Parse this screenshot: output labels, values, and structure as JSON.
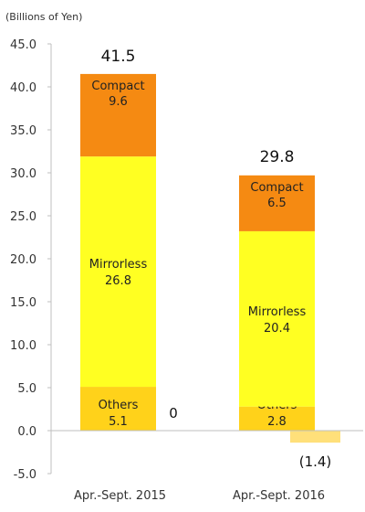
{
  "chart_data": {
    "type": "bar",
    "stacked": true,
    "unit_label": "(Billions of Yen)",
    "ylim": [
      -5,
      45
    ],
    "yticks": [
      "45.0",
      "40.0",
      "35.0",
      "30.0",
      "25.0",
      "20.0",
      "15.0",
      "10.0",
      "5.0",
      "0.0",
      "-5.0"
    ],
    "ytick_values": [
      45,
      40,
      35,
      30,
      25,
      20,
      15,
      10,
      5,
      0,
      -5
    ],
    "grid": false,
    "categories": [
      "Apr.-Sept. 2015",
      "Apr.-Sept. 2016"
    ],
    "colors": {
      "others": "#ffd21a",
      "mirrorless": "#ffff22",
      "compact": "#f58a12",
      "negative": "#ffe07a",
      "axis": "#bfbfbf"
    },
    "bars": [
      {
        "total": 41.5,
        "total_label": "41.5",
        "segments": [
          {
            "name": "Others",
            "value": 5.1,
            "value_label": "5.1",
            "color_key": "others"
          },
          {
            "name": "Mirrorless",
            "value": 26.8,
            "value_label": "26.8",
            "color_key": "mirrorless"
          },
          {
            "name": "Compact",
            "value": 9.6,
            "value_label": "9.6",
            "color_key": "compact"
          }
        ]
      },
      {
        "total": 29.8,
        "total_label": "29.8",
        "segments": [
          {
            "name": "Others",
            "value": 2.8,
            "value_label": "2.8",
            "color_key": "others"
          },
          {
            "name": "Mirrorless",
            "value": 20.4,
            "value_label": "20.4",
            "color_key": "mirrorless"
          },
          {
            "name": "Compact",
            "value": 6.5,
            "value_label": "6.5",
            "color_key": "compact"
          }
        ]
      }
    ],
    "adjustments": [
      {
        "value": 0,
        "label": "0",
        "after_bar": 0
      },
      {
        "value": -1.4,
        "label": "(1.4)",
        "after_bar": 1
      }
    ]
  }
}
